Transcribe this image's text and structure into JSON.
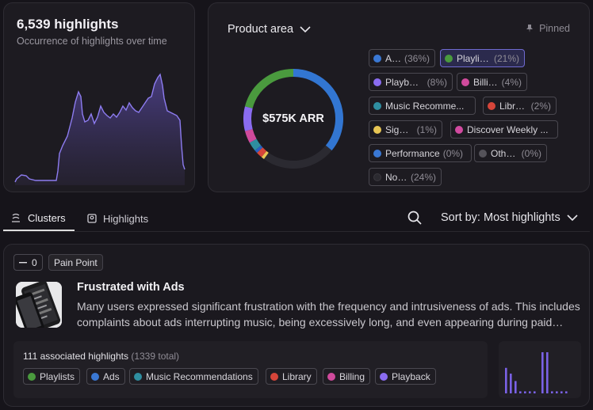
{
  "highlights": {
    "title": "6,539 highlights",
    "subtitle": "Occurrence of highlights over time"
  },
  "product_area": {
    "title": "Product area",
    "pinned_label": "Pinned",
    "center_value": "$575K ARR",
    "chips": [
      {
        "name": "Ads",
        "pct": "(36%)",
        "color": "#3a78d4",
        "selected": false
      },
      {
        "name": "Playlists",
        "pct": "(21%)",
        "color": "#4a9a3e",
        "selected": true
      },
      {
        "name": "Playback",
        "pct": "(8%)",
        "color": "#8a6cf0",
        "selected": false
      },
      {
        "name": "Billing",
        "pct": "(4%)",
        "color": "#d04a9c",
        "selected": false
      },
      {
        "name": "Music Recomme...",
        "pct": "",
        "color": "#2f8ea0",
        "selected": false
      },
      {
        "name": "Library",
        "pct": "(2%)",
        "color": "#d6453a",
        "selected": false
      },
      {
        "name": "Sign-up",
        "pct": "(1%)",
        "color": "#e8c654",
        "selected": false
      },
      {
        "name": "Discover Weekly ...",
        "pct": "",
        "color": "#d24aa0",
        "selected": false
      },
      {
        "name": "Performance",
        "pct": "(0%)",
        "color": "#3a78d4",
        "selected": false
      },
      {
        "name": "Others",
        "pct": "(0%)",
        "color": "#555359",
        "selected": false
      },
      {
        "name": "None",
        "pct": "(24%)",
        "color": "#2e2c32",
        "selected": false
      }
    ],
    "donut_segments": [
      {
        "label": "Ads",
        "value": 36,
        "color": "#3276d2"
      },
      {
        "label": "None",
        "value": 24,
        "color": "#2b2a31"
      },
      {
        "label": "Sign-up",
        "value": 1,
        "color": "#e8c654"
      },
      {
        "label": "Library",
        "value": 2,
        "color": "#d6453a"
      },
      {
        "label": "Performance",
        "value": 1,
        "color": "#2a60c0"
      },
      {
        "label": "Music Recommendations",
        "value": 3,
        "color": "#2f8ea0"
      },
      {
        "label": "Billing",
        "value": 4,
        "color": "#d04a9c"
      },
      {
        "label": "Playback",
        "value": 8,
        "color": "#8a6cf0"
      },
      {
        "label": "Playlists",
        "value": 21,
        "color": "#4a9a3e"
      }
    ]
  },
  "tabs": [
    {
      "label": "Clusters",
      "active": true
    },
    {
      "label": "Highlights",
      "active": false
    }
  ],
  "sort": {
    "label": "Sort by: Most highlights"
  },
  "cluster": {
    "count": "0",
    "category": "Pain Point",
    "title": "Frustrated with Ads",
    "description": "Many users expressed significant frustration with the frequency and intrusiveness of ads. This includes complaints about ads interrupting music, being excessively long, and even appearing during paid subscriptions, significantly degrading the listening experience.",
    "associated": "111 associated highlights",
    "total": "(1339 total)",
    "tags": [
      {
        "name": "Playlists",
        "color": "#4a9a3e"
      },
      {
        "name": "Ads",
        "color": "#3a78d4"
      },
      {
        "name": "Music Recommendations",
        "color": "#2f8ea0"
      },
      {
        "name": "Library",
        "color": "#d6453a"
      },
      {
        "name": "Billing",
        "color": "#d04a9c"
      },
      {
        "name": "Playback",
        "color": "#8a6cf0"
      }
    ],
    "mini_bars": [
      0.62,
      0.48,
      0.3,
      0.05,
      0.05,
      0.05,
      0.05,
      1.0,
      1.0,
      0.05,
      0.05,
      0.05,
      0.05
    ]
  },
  "colors": {
    "accent": "#7a6ae0",
    "background": "#16141a",
    "card": "#1d1b21"
  }
}
